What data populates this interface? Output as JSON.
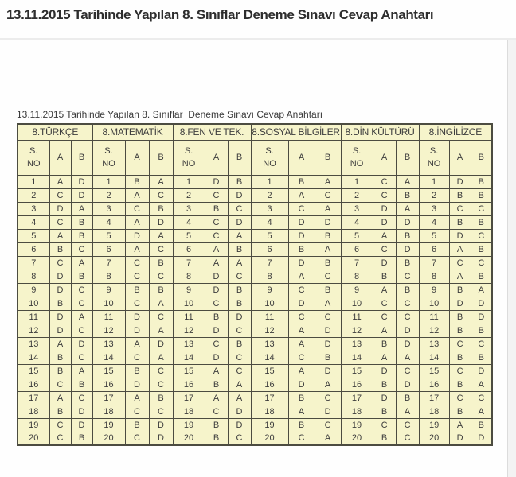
{
  "page": {
    "main_title": "13.11.2015 Tarihinde Yapılan 8. Sınıflar Deneme Sınavı Cevap Anahtarı",
    "table_caption": "13.11.2015 Tarihinde Yapılan 8. Sınıflar  Deneme Sınavı Cevap Anahtarı"
  },
  "colors": {
    "cell_bg": "#f6f4cb",
    "table_border": "#4c4c41",
    "title_text": "#2e2e2e",
    "cell_text": "#3d3d3d",
    "divider": "#ececec",
    "gutter_bg": "#f3f3f3"
  },
  "table": {
    "subjects": [
      "8.TÜRKÇE",
      "8.MATEMATİK",
      "8.FEN VE TEK.",
      "8.SOSYAL BİLGİLER",
      "8.DİN KÜLTÜRÜ",
      "8.İNGİLİZCE"
    ],
    "subheaders": {
      "sno_line1": "S.",
      "sno_line2": "NO",
      "a": "A",
      "b": "B"
    },
    "rows": [
      {
        "no": "1",
        "answers": [
          [
            "A",
            "D"
          ],
          [
            "B",
            "A"
          ],
          [
            "D",
            "B"
          ],
          [
            "B",
            "A"
          ],
          [
            "C",
            "A"
          ],
          [
            "D",
            "B"
          ]
        ]
      },
      {
        "no": "2",
        "answers": [
          [
            "C",
            "D"
          ],
          [
            "A",
            "C"
          ],
          [
            "C",
            "D"
          ],
          [
            "A",
            "C"
          ],
          [
            "C",
            "B"
          ],
          [
            "B",
            "B"
          ]
        ]
      },
      {
        "no": "3",
        "answers": [
          [
            "D",
            "A"
          ],
          [
            "C",
            "B"
          ],
          [
            "B",
            "C"
          ],
          [
            "C",
            "A"
          ],
          [
            "D",
            "A"
          ],
          [
            "C",
            "C"
          ]
        ]
      },
      {
        "no": "4",
        "answers": [
          [
            "C",
            "B"
          ],
          [
            "A",
            "D"
          ],
          [
            "C",
            "D"
          ],
          [
            "D",
            "D"
          ],
          [
            "D",
            "D"
          ],
          [
            "B",
            "B"
          ]
        ]
      },
      {
        "no": "5",
        "answers": [
          [
            "A",
            "B"
          ],
          [
            "D",
            "A"
          ],
          [
            "C",
            "A"
          ],
          [
            "D",
            "B"
          ],
          [
            "A",
            "B"
          ],
          [
            "D",
            "C"
          ]
        ]
      },
      {
        "no": "6",
        "answers": [
          [
            "B",
            "C"
          ],
          [
            "A",
            "C"
          ],
          [
            "A",
            "B"
          ],
          [
            "B",
            "A"
          ],
          [
            "C",
            "D"
          ],
          [
            "A",
            "B"
          ]
        ]
      },
      {
        "no": "7",
        "answers": [
          [
            "C",
            "A"
          ],
          [
            "C",
            "B"
          ],
          [
            "A",
            "A"
          ],
          [
            "D",
            "B"
          ],
          [
            "D",
            "B"
          ],
          [
            "C",
            "C"
          ]
        ]
      },
      {
        "no": "8",
        "answers": [
          [
            "D",
            "B"
          ],
          [
            "C",
            "C"
          ],
          [
            "D",
            "C"
          ],
          [
            "A",
            "C"
          ],
          [
            "B",
            "C"
          ],
          [
            "A",
            "B"
          ]
        ]
      },
      {
        "no": "9",
        "answers": [
          [
            "D",
            "C"
          ],
          [
            "B",
            "B"
          ],
          [
            "D",
            "B"
          ],
          [
            "C",
            "B"
          ],
          [
            "A",
            "B"
          ],
          [
            "B",
            "A"
          ]
        ]
      },
      {
        "no": "10",
        "answers": [
          [
            "B",
            "C"
          ],
          [
            "C",
            "A"
          ],
          [
            "C",
            "B"
          ],
          [
            "D",
            "A"
          ],
          [
            "C",
            "C"
          ],
          [
            "D",
            "D"
          ]
        ]
      },
      {
        "no": "11",
        "answers": [
          [
            "D",
            "A"
          ],
          [
            "D",
            "C"
          ],
          [
            "B",
            "D"
          ],
          [
            "C",
            "C"
          ],
          [
            "C",
            "C"
          ],
          [
            "B",
            "D"
          ]
        ]
      },
      {
        "no": "12",
        "answers": [
          [
            "D",
            "C"
          ],
          [
            "D",
            "A"
          ],
          [
            "D",
            "C"
          ],
          [
            "A",
            "D"
          ],
          [
            "A",
            "D"
          ],
          [
            "B",
            "B"
          ]
        ]
      },
      {
        "no": "13",
        "answers": [
          [
            "A",
            "D"
          ],
          [
            "A",
            "D"
          ],
          [
            "C",
            "B"
          ],
          [
            "A",
            "D"
          ],
          [
            "B",
            "D"
          ],
          [
            "C",
            "C"
          ]
        ]
      },
      {
        "no": "14",
        "answers": [
          [
            "B",
            "C"
          ],
          [
            "C",
            "A"
          ],
          [
            "D",
            "C"
          ],
          [
            "C",
            "B"
          ],
          [
            "A",
            "A"
          ],
          [
            "B",
            "B"
          ]
        ]
      },
      {
        "no": "15",
        "answers": [
          [
            "B",
            "A"
          ],
          [
            "B",
            "C"
          ],
          [
            "A",
            "C"
          ],
          [
            "A",
            "D"
          ],
          [
            "D",
            "C"
          ],
          [
            "C",
            "D"
          ]
        ]
      },
      {
        "no": "16",
        "answers": [
          [
            "C",
            "B"
          ],
          [
            "D",
            "C"
          ],
          [
            "B",
            "A"
          ],
          [
            "D",
            "A"
          ],
          [
            "B",
            "D"
          ],
          [
            "B",
            "A"
          ]
        ]
      },
      {
        "no": "17",
        "answers": [
          [
            "A",
            "C"
          ],
          [
            "A",
            "B"
          ],
          [
            "A",
            "A"
          ],
          [
            "B",
            "C"
          ],
          [
            "D",
            "B"
          ],
          [
            "C",
            "C"
          ]
        ]
      },
      {
        "no": "18",
        "answers": [
          [
            "B",
            "D"
          ],
          [
            "C",
            "C"
          ],
          [
            "C",
            "D"
          ],
          [
            "A",
            "D"
          ],
          [
            "B",
            "A"
          ],
          [
            "B",
            "A"
          ]
        ]
      },
      {
        "no": "19",
        "answers": [
          [
            "C",
            "D"
          ],
          [
            "B",
            "D"
          ],
          [
            "B",
            "D"
          ],
          [
            "B",
            "C"
          ],
          [
            "C",
            "C"
          ],
          [
            "A",
            "B"
          ]
        ]
      },
      {
        "no": "20",
        "answers": [
          [
            "C",
            "B"
          ],
          [
            "C",
            "D"
          ],
          [
            "B",
            "C"
          ],
          [
            "C",
            "A"
          ],
          [
            "B",
            "C"
          ],
          [
            "D",
            "D"
          ]
        ]
      }
    ]
  }
}
